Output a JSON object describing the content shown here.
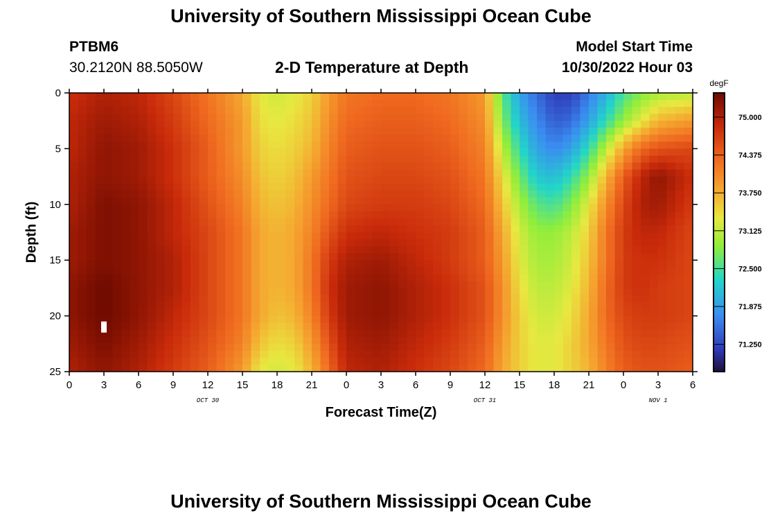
{
  "page": {
    "title_top": "University of Southern Mississippi Ocean Cube",
    "title_bottom": "University of Southern Mississippi Ocean Cube",
    "station_id": "PTBM6",
    "coords": "30.2120N  88.5050W",
    "subtitle": "2-D Temperature at Depth",
    "model_label": "Model Start Time",
    "model_time": "10/30/2022 Hour 03"
  },
  "chart_data": {
    "type": "heatmap",
    "title": "2-D Temperature at Depth",
    "xlabel": "Forecast Time(Z)",
    "ylabel": "Depth (ft)",
    "x_ticks": [
      "0",
      "3",
      "6",
      "9",
      "12",
      "15",
      "18",
      "21",
      "0",
      "3",
      "6",
      "9",
      "12",
      "15",
      "18",
      "21",
      "0",
      "3",
      "6"
    ],
    "x_range_hours": [
      0,
      54
    ],
    "day_labels": [
      {
        "label": "OCT 30",
        "hour": 12
      },
      {
        "label": "OCT 31",
        "hour": 36
      },
      {
        "label": "NOV 1",
        "hour": 51
      }
    ],
    "y_ticks": [
      0,
      5,
      10,
      15,
      20,
      25
    ],
    "y_range": [
      0,
      25
    ],
    "y_inverted": true,
    "colorbar": {
      "unit": "degF",
      "range": [
        70.8,
        75.4
      ],
      "ticks": [
        "75.000",
        "74.375",
        "73.750",
        "73.125",
        "72.500",
        "71.875",
        "71.250"
      ],
      "tick_values": [
        75.0,
        74.375,
        73.75,
        73.125,
        72.5,
        71.875,
        71.25
      ],
      "stops": [
        {
          "t": 0.0,
          "color": "#1e0f3c"
        },
        {
          "t": 0.08,
          "color": "#2f3ab8"
        },
        {
          "t": 0.2,
          "color": "#3a8cf0"
        },
        {
          "t": 0.33,
          "color": "#22d6c8"
        },
        {
          "t": 0.45,
          "color": "#90ee3a"
        },
        {
          "t": 0.55,
          "color": "#e8e840"
        },
        {
          "t": 0.65,
          "color": "#f5a830"
        },
        {
          "t": 0.76,
          "color": "#f06a20"
        },
        {
          "t": 0.88,
          "color": "#c82a0a"
        },
        {
          "t": 1.0,
          "color": "#6e0a00"
        }
      ]
    },
    "depths_ft": [
      0,
      2.5,
      5,
      7.5,
      10,
      12.5,
      15,
      17.5,
      20,
      22.5,
      25
    ],
    "hours": [
      0,
      3,
      6,
      9,
      12,
      15,
      16.5,
      18,
      19.5,
      21,
      22.5,
      24,
      27,
      30,
      33,
      36,
      37.5,
      39,
      40.5,
      42,
      43.5,
      45,
      46.5,
      48,
      49.5,
      51,
      54
    ],
    "temperature_degF": [
      [
        74.8,
        75.0,
        74.9,
        74.6,
        74.2,
        73.8,
        73.3,
        73.2,
        73.3,
        73.5,
        73.9,
        74.2,
        74.3,
        74.3,
        74.2,
        73.9,
        72.6,
        71.9,
        71.5,
        71.2,
        71.2,
        71.6,
        72.0,
        72.5,
        72.8,
        73.0,
        73.1
      ],
      [
        74.9,
        75.1,
        75.0,
        74.7,
        74.3,
        73.9,
        73.4,
        73.3,
        73.4,
        73.6,
        74.0,
        74.3,
        74.4,
        74.4,
        74.3,
        74.0,
        72.8,
        72.1,
        71.7,
        71.4,
        71.5,
        71.9,
        72.4,
        72.9,
        73.3,
        73.7,
        73.9
      ],
      [
        74.9,
        75.2,
        75.1,
        74.8,
        74.4,
        73.9,
        73.5,
        73.4,
        73.5,
        73.7,
        74.1,
        74.4,
        74.5,
        74.5,
        74.4,
        74.1,
        73.1,
        72.4,
        71.9,
        71.7,
        71.9,
        72.4,
        73.1,
        73.8,
        74.3,
        74.5,
        74.6
      ],
      [
        75.0,
        75.2,
        75.1,
        74.8,
        74.4,
        74.0,
        73.6,
        73.5,
        73.6,
        73.9,
        74.2,
        74.5,
        74.6,
        74.6,
        74.5,
        74.2,
        73.4,
        72.7,
        72.2,
        72.1,
        72.4,
        72.9,
        73.7,
        74.4,
        74.9,
        75.2,
        74.8
      ],
      [
        75.0,
        75.3,
        75.2,
        74.9,
        74.5,
        74.1,
        73.7,
        73.6,
        73.7,
        74.0,
        74.3,
        74.6,
        74.7,
        74.7,
        74.6,
        74.3,
        73.6,
        73.0,
        72.6,
        72.5,
        72.8,
        73.3,
        74.0,
        74.6,
        75.0,
        75.1,
        74.7
      ],
      [
        75.1,
        75.3,
        75.2,
        74.9,
        74.6,
        74.2,
        73.8,
        73.7,
        73.8,
        74.1,
        74.5,
        74.8,
        74.9,
        74.8,
        74.7,
        74.4,
        73.8,
        73.2,
        72.9,
        72.9,
        73.1,
        73.5,
        74.2,
        74.7,
        74.9,
        74.9,
        74.6
      ],
      [
        75.1,
        75.3,
        75.2,
        75.0,
        74.6,
        74.2,
        73.8,
        73.7,
        73.8,
        74.2,
        74.7,
        75.0,
        75.1,
        74.9,
        74.7,
        74.4,
        73.9,
        73.3,
        73.0,
        73.0,
        73.2,
        73.6,
        74.2,
        74.7,
        74.8,
        74.8,
        74.6
      ],
      [
        75.2,
        75.4,
        75.2,
        75.0,
        74.6,
        74.2,
        73.8,
        73.7,
        73.8,
        74.2,
        74.8,
        75.1,
        75.2,
        75.0,
        74.8,
        74.5,
        74.0,
        73.4,
        73.1,
        73.1,
        73.3,
        73.7,
        74.3,
        74.7,
        74.8,
        74.7,
        74.6
      ],
      [
        75.2,
        75.4,
        75.2,
        74.9,
        74.6,
        74.2,
        73.8,
        73.6,
        73.7,
        74.1,
        74.7,
        75.1,
        75.2,
        75.0,
        74.8,
        74.5,
        74.0,
        73.5,
        73.2,
        73.2,
        73.4,
        73.8,
        74.3,
        74.6,
        74.7,
        74.7,
        74.6
      ],
      [
        75.1,
        75.3,
        75.1,
        74.8,
        74.5,
        74.1,
        73.6,
        73.4,
        73.5,
        73.9,
        74.5,
        75.0,
        75.1,
        74.9,
        74.7,
        74.4,
        73.9,
        73.5,
        73.3,
        73.3,
        73.5,
        73.8,
        74.2,
        74.5,
        74.6,
        74.6,
        74.5
      ],
      [
        75.0,
        75.2,
        75.0,
        74.7,
        74.4,
        73.9,
        73.3,
        73.2,
        73.3,
        73.7,
        74.3,
        74.9,
        75.0,
        74.8,
        74.6,
        74.3,
        73.8,
        73.5,
        73.3,
        73.3,
        73.5,
        73.7,
        74.1,
        74.4,
        74.5,
        74.5,
        74.4
      ]
    ],
    "marker": {
      "hour": 3,
      "depth_ft": 21
    }
  }
}
